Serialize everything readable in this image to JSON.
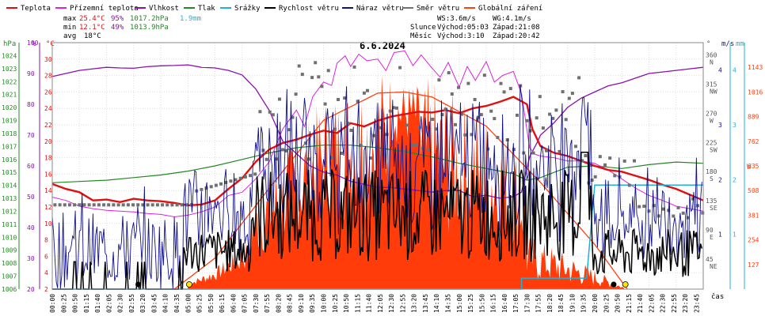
{
  "chart_data": {
    "type": "line",
    "title": "6.6.2024",
    "legend": [
      {
        "name": "Teplota",
        "color": "#e01010"
      },
      {
        "name": "Přízemní teplota",
        "color": "#dd22dd"
      },
      {
        "name": "Vlhkost",
        "color": "#8a10b0"
      },
      {
        "name": "Tlak",
        "color": "#228822"
      },
      {
        "name": "Srážky",
        "color": "#20b0d8"
      },
      {
        "name": "Rychlost větru",
        "color": "#000000"
      },
      {
        "name": "Náraz větru",
        "color": "#10108a"
      },
      {
        "name": "Směr větru",
        "color": "#707070"
      },
      {
        "name": "Globální záření",
        "color": "#ff4010"
      }
    ],
    "stats": {
      "max_label": "max",
      "max_temp": "25.4°C",
      "max_hum": "95%",
      "max_press": "1017.2hPa",
      "max_rain": "1.9mm",
      "min_label": "min",
      "min_temp": "12.1°C",
      "min_hum": "49%",
      "min_press": "1013.9hPa",
      "avg_label": "avg",
      "avg_temp": "18°C",
      "ws": "WS:3.6m/s",
      "wg": "WG:4.1m/s",
      "sun_label": "Slunce",
      "sun_rise": "Východ:05:03",
      "sun_set": "Západ:21:08",
      "moon_label": "Měsíc",
      "moon_rise": "Východ:3:10",
      "moon_set": "Západ:20:42"
    },
    "axes": {
      "hpa_unit": "hPa",
      "pct_unit": "%",
      "c_unit": "°C",
      "pressure_ticks": [
        "1024",
        "1023",
        "1022",
        "1021",
        "1020",
        "1019",
        "1018",
        "1017",
        "1016",
        "1015",
        "1014",
        "1013",
        "1012",
        "1011",
        "1010",
        "1009",
        "1008",
        "1007",
        "1006"
      ],
      "humidity_ticks": [
        "100",
        "90",
        "80",
        "70",
        "60",
        "50",
        "40",
        "30",
        "20"
      ],
      "temp_ticks": [
        "30",
        "28",
        "26",
        "24",
        "22",
        "20",
        "18",
        "16",
        "14",
        "12",
        "10",
        "8",
        "6",
        "4",
        "2"
      ],
      "dir_unit": "°",
      "ms_unit": "m/s",
      "mm_unit": "mm",
      "w_unit": "W",
      "dir_ticks": [
        {
          "d": "360",
          "c": "N"
        },
        {
          "d": "315",
          "c": "NW"
        },
        {
          "d": "270",
          "c": "W"
        },
        {
          "d": "225",
          "c": "SW"
        },
        {
          "d": "180",
          "c": "S"
        },
        {
          "d": "135",
          "c": "SE"
        },
        {
          "d": "90",
          "c": "E"
        },
        {
          "d": "45",
          "c": "NE"
        }
      ],
      "ms_ticks": [
        "4",
        "3",
        "2",
        "1"
      ],
      "mm_ticks": [
        "4",
        "3",
        "2",
        "1"
      ],
      "w_ticks": [
        "1143",
        "1016",
        "889",
        "762",
        "635",
        "508",
        "381",
        "254",
        "127"
      ],
      "x_unit": "čas",
      "time_labels": [
        "00:00",
        "00:25",
        "00:50",
        "01:15",
        "01:40",
        "02:05",
        "02:30",
        "02:55",
        "03:20",
        "03:45",
        "04:10",
        "04:35",
        "05:00",
        "05:25",
        "05:50",
        "06:15",
        "06:40",
        "07:05",
        "07:30",
        "07:55",
        "08:20",
        "08:45",
        "09:10",
        "09:35",
        "10:00",
        "10:25",
        "10:50",
        "11:15",
        "11:40",
        "12:05",
        "12:30",
        "12:55",
        "13:20",
        "13:45",
        "14:10",
        "14:35",
        "15:00",
        "15:25",
        "15:50",
        "16:15",
        "16:40",
        "17:05",
        "17:30",
        "17:55",
        "18:20",
        "18:45",
        "19:10",
        "19:35",
        "20:00",
        "20:25",
        "20:50",
        "21:15",
        "21:40",
        "22:05",
        "22:30",
        "22:55",
        "23:20",
        "23:45"
      ],
      "ylim_temp": [
        2,
        32
      ],
      "ylim_humidity": [
        20,
        100
      ],
      "ylim_pressure": [
        1006,
        1025
      ],
      "ylim_wind": [
        0,
        4.5
      ],
      "ylim_radiation": [
        0,
        1270
      ],
      "xlim_hours": [
        0,
        24
      ]
    },
    "series": {
      "temperature": [
        [
          0,
          14.8
        ],
        [
          0.5,
          14.2
        ],
        [
          1,
          13.8
        ],
        [
          1.5,
          12.8
        ],
        [
          2,
          12.9
        ],
        [
          2.5,
          12.6
        ],
        [
          3,
          13
        ],
        [
          3.5,
          12.8
        ],
        [
          4,
          12.7
        ],
        [
          4.5,
          12.5
        ],
        [
          5,
          12.2
        ],
        [
          5.5,
          12.3
        ],
        [
          6,
          12.8
        ],
        [
          6.5,
          14.2
        ],
        [
          7,
          15.5
        ],
        [
          7.5,
          17.5
        ],
        [
          8,
          19
        ],
        [
          8.5,
          19.8
        ],
        [
          9,
          20.2
        ],
        [
          9.5,
          20.8
        ],
        [
          10,
          21.3
        ],
        [
          10.5,
          21
        ],
        [
          11,
          22.2
        ],
        [
          11.5,
          21.8
        ],
        [
          12,
          22.5
        ],
        [
          12.5,
          23
        ],
        [
          13,
          23.3
        ],
        [
          13.5,
          23.6
        ],
        [
          14,
          23.5
        ],
        [
          14.5,
          23.8
        ],
        [
          15,
          23.4
        ],
        [
          15.5,
          24
        ],
        [
          16,
          24.3
        ],
        [
          16.5,
          24.8
        ],
        [
          17,
          25.4
        ],
        [
          17.5,
          24.5
        ],
        [
          17.7,
          21.5
        ],
        [
          18,
          19.4
        ],
        [
          18.5,
          18.6
        ],
        [
          19,
          18.2
        ],
        [
          19.5,
          17.6
        ],
        [
          20,
          17
        ],
        [
          20.5,
          16.5
        ],
        [
          21,
          16.3
        ],
        [
          21.5,
          15.8
        ],
        [
          22,
          15.3
        ],
        [
          22.5,
          14.7
        ],
        [
          23,
          14.2
        ],
        [
          23.5,
          13.5
        ],
        [
          24,
          12.8
        ]
      ],
      "ground_temperature": [
        [
          0,
          13.2
        ],
        [
          0.5,
          12.8
        ],
        [
          1,
          12.1
        ],
        [
          1.5,
          11.8
        ],
        [
          2,
          11.6
        ],
        [
          2.5,
          11.5
        ],
        [
          3,
          11.4
        ],
        [
          3.5,
          11.2
        ],
        [
          4,
          11.1
        ],
        [
          4.5,
          10.8
        ],
        [
          5,
          11
        ],
        [
          5.5,
          11.4
        ],
        [
          6,
          12
        ],
        [
          6.5,
          13.4
        ],
        [
          7,
          13.8
        ],
        [
          7.5,
          15.4
        ],
        [
          8,
          17.5
        ],
        [
          8.5,
          21.5
        ],
        [
          9,
          23.8
        ],
        [
          9.3,
          21.8
        ],
        [
          9.6,
          25.4
        ],
        [
          10,
          27.2
        ],
        [
          10.3,
          26.8
        ],
        [
          10.5,
          29.5
        ],
        [
          10.8,
          30.4
        ],
        [
          11,
          29.1
        ],
        [
          11.3,
          30.6
        ],
        [
          11.6,
          29.8
        ],
        [
          12,
          30
        ],
        [
          12.3,
          28.6
        ],
        [
          12.6,
          30.8
        ],
        [
          13,
          31
        ],
        [
          13.3,
          29.2
        ],
        [
          13.6,
          30.5
        ],
        [
          14,
          28.9
        ],
        [
          14.3,
          27.8
        ],
        [
          14.6,
          29.6
        ],
        [
          15,
          26.6
        ],
        [
          15.3,
          29.1
        ],
        [
          15.6,
          27.4
        ],
        [
          16,
          29.7
        ],
        [
          16.3,
          27.2
        ],
        [
          16.6,
          28
        ],
        [
          17,
          28.5
        ],
        [
          17.3,
          25.8
        ],
        [
          17.6,
          19.2
        ],
        [
          17.8,
          18.4
        ],
        [
          18,
          18.2
        ],
        [
          18.5,
          18
        ],
        [
          19,
          17.6
        ],
        [
          19.5,
          17.6
        ],
        [
          20,
          17.3
        ],
        [
          20.5,
          16.5
        ],
        [
          21,
          15.4
        ],
        [
          21.5,
          14.3
        ],
        [
          22,
          13.4
        ],
        [
          22.5,
          12.8
        ],
        [
          23,
          12.1
        ],
        [
          23.5,
          11.8
        ],
        [
          24,
          11.5
        ]
      ],
      "humidity": [
        [
          0,
          89
        ],
        [
          0.5,
          90
        ],
        [
          1,
          91
        ],
        [
          1.5,
          91.5
        ],
        [
          2,
          92
        ],
        [
          2.5,
          91.8
        ],
        [
          3,
          91.7
        ],
        [
          3.5,
          92.2
        ],
        [
          4,
          92.5
        ],
        [
          4.5,
          92.6
        ],
        [
          5,
          92.8
        ],
        [
          5.5,
          92
        ],
        [
          6,
          91.8
        ],
        [
          6.5,
          91
        ],
        [
          7,
          89.5
        ],
        [
          7.5,
          85
        ],
        [
          8,
          78
        ],
        [
          8.5,
          68
        ],
        [
          9,
          64
        ],
        [
          9.5,
          60
        ],
        [
          10,
          58
        ],
        [
          10.5,
          57
        ],
        [
          11,
          55
        ],
        [
          11.5,
          54
        ],
        [
          12,
          53
        ],
        [
          12.5,
          53
        ],
        [
          13,
          52.5
        ],
        [
          13.5,
          52
        ],
        [
          14,
          51.5
        ],
        [
          14.5,
          52
        ],
        [
          15,
          52
        ],
        [
          15.5,
          50
        ],
        [
          16,
          50.5
        ],
        [
          16.5,
          49.5
        ],
        [
          17,
          50
        ],
        [
          17.3,
          51.5
        ],
        [
          17.6,
          63
        ],
        [
          17.9,
          68
        ],
        [
          18,
          70
        ],
        [
          18.5,
          74
        ],
        [
          19,
          79
        ],
        [
          19.5,
          82
        ],
        [
          20,
          84
        ],
        [
          20.5,
          86
        ],
        [
          21,
          87
        ],
        [
          21.5,
          88.5
        ],
        [
          22,
          90
        ],
        [
          22.5,
          90.5
        ],
        [
          23,
          91
        ],
        [
          23.5,
          91.5
        ],
        [
          24,
          92
        ]
      ],
      "pressure": [
        [
          0,
          1014.2
        ],
        [
          1,
          1014.3
        ],
        [
          2,
          1014.4
        ],
        [
          3,
          1014.6
        ],
        [
          4,
          1014.8
        ],
        [
          5,
          1015.1
        ],
        [
          6,
          1015.5
        ],
        [
          7,
          1016
        ],
        [
          8,
          1016.5
        ],
        [
          9,
          1016.9
        ],
        [
          10,
          1017.1
        ],
        [
          11,
          1017.1
        ],
        [
          12,
          1016.9
        ],
        [
          13,
          1016.6
        ],
        [
          14,
          1016.2
        ],
        [
          15,
          1015.7
        ],
        [
          16,
          1015.3
        ],
        [
          17,
          1014.9
        ],
        [
          17.5,
          1014.4
        ],
        [
          18,
          1014.6
        ],
        [
          19,
          1015.4
        ],
        [
          20,
          1015.5
        ],
        [
          21,
          1015.3
        ],
        [
          22,
          1015.6
        ],
        [
          23,
          1015.8
        ],
        [
          24,
          1015.7
        ]
      ],
      "rainfall": [
        [
          0,
          0
        ],
        [
          17.3,
          0
        ],
        [
          17.3,
          0.2
        ],
        [
          19.7,
          0.2
        ],
        [
          20.0,
          1.9
        ],
        [
          24,
          1.9
        ]
      ],
      "radiation_sun_curve": [
        [
          4.5,
          0
        ],
        [
          6,
          160
        ],
        [
          8,
          520
        ],
        [
          10,
          870
        ],
        [
          12,
          1010
        ],
        [
          13,
          1016
        ],
        [
          14,
          990
        ],
        [
          16,
          840
        ],
        [
          18,
          550
        ],
        [
          20,
          230
        ],
        [
          21.2,
          0
        ]
      ],
      "radiation_bars_note": "global radiation measured, peaks ~1000 W/m² near 10:00-13:00, fluctuating under clouds",
      "wind_speed_note": "mostly 0-2.5 m/s, peak ~2.5 m/s around 19:40",
      "gust_note": "gusts up to ~4 m/s between 07:30 and 20:00"
    }
  }
}
